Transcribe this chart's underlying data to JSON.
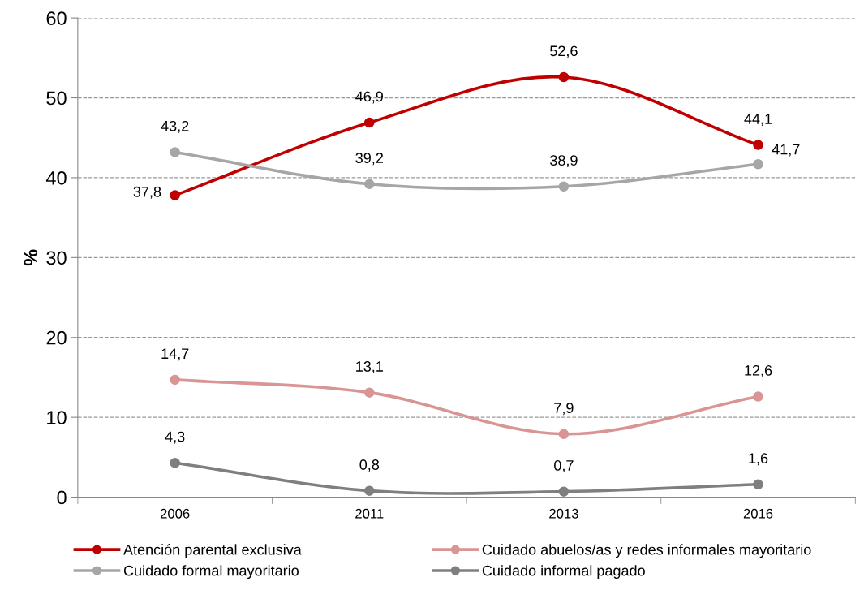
{
  "chart_data": {
    "type": "line",
    "ylabel": "%",
    "categories": [
      "2006",
      "2011",
      "2013",
      "2016"
    ],
    "series": [
      {
        "name": "Atención parental exclusiva",
        "color": "#c00000",
        "values": [
          37.8,
          46.9,
          52.6,
          44.1
        ],
        "value_labels": [
          "37,8",
          "46,9",
          "52,6",
          "44,1"
        ]
      },
      {
        "name": "Cuidado abuelos/as y redes informales mayoritario",
        "color": "#d99594",
        "values": [
          14.7,
          13.1,
          7.9,
          12.6
        ],
        "value_labels": [
          "14,7",
          "13,1",
          "7,9",
          "12,6"
        ]
      },
      {
        "name": "Cuidado formal mayoritario",
        "color": "#a6a6a6",
        "values": [
          43.2,
          39.2,
          38.9,
          41.7
        ],
        "value_labels": [
          "43,2",
          "39,2",
          "38,9",
          "41,7"
        ]
      },
      {
        "name": "Cuidado informal pagado",
        "color": "#7f7f7f",
        "values": [
          4.3,
          0.8,
          0.7,
          1.6
        ],
        "value_labels": [
          "4,3",
          "0,8",
          "0,7",
          "1,6"
        ]
      }
    ],
    "ylim": [
      0,
      60
    ],
    "yticks": [
      0,
      10,
      20,
      30,
      40,
      50,
      60
    ],
    "grid": "y",
    "legend": "bottom",
    "marker": "circle",
    "line_style": "solid"
  }
}
